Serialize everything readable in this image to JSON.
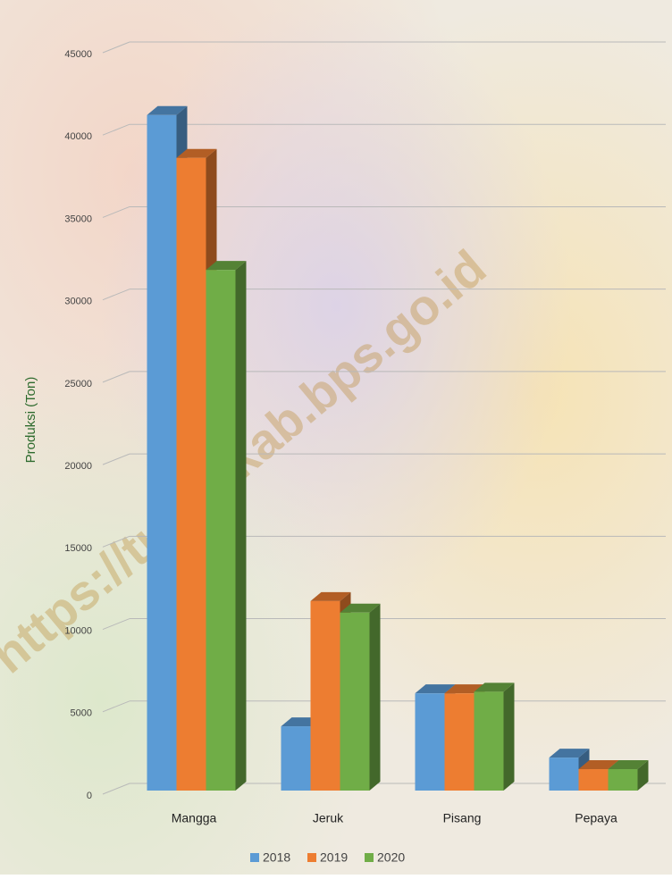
{
  "chart_data": {
    "type": "bar",
    "y_label": "Produksi (Ton)",
    "watermark": "https://tubankab.bps.go.id",
    "categories": [
      "Mangga",
      "Jeruk",
      "Pisang",
      "Pepaya"
    ],
    "series": [
      {
        "name": "2018",
        "color": "#5b9bd5",
        "values": [
          41000,
          3900,
          5900,
          2000
        ]
      },
      {
        "name": "2019",
        "color": "#ed7d31",
        "values": [
          38400,
          11500,
          5900,
          1300
        ]
      },
      {
        "name": "2020",
        "color": "#70ad47",
        "values": [
          31600,
          10800,
          6000,
          1300
        ]
      }
    ],
    "ylim": [
      0,
      45000
    ],
    "yticks": [
      0,
      5000,
      10000,
      15000,
      20000,
      25000,
      30000,
      35000,
      40000,
      45000
    ],
    "grid": true,
    "legend": "bottom"
  }
}
